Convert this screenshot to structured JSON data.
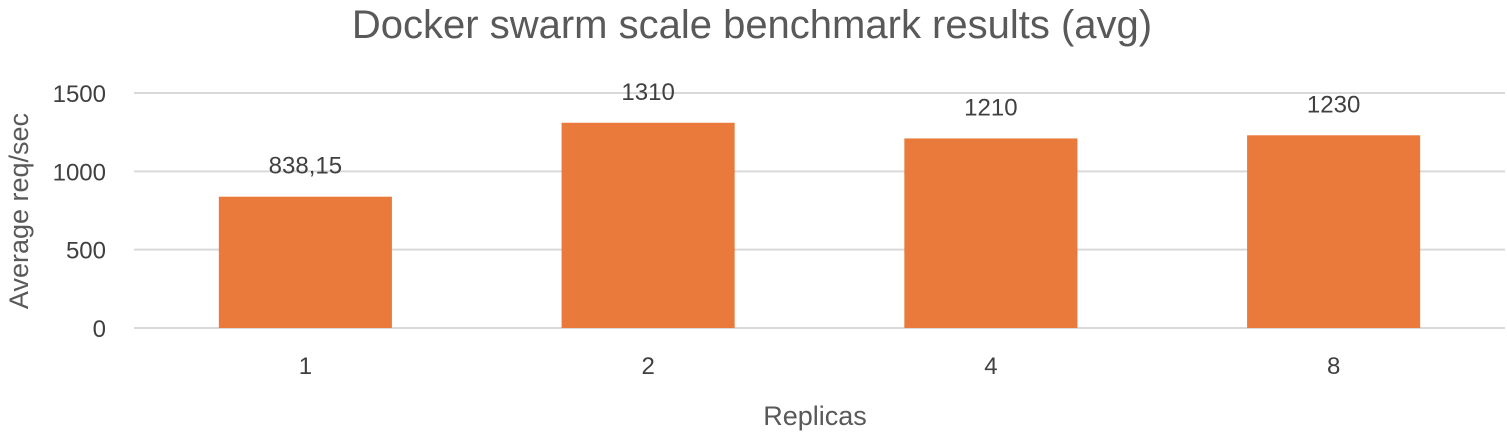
{
  "chart_data": {
    "type": "bar",
    "title": "Docker swarm scale benchmark results (avg)",
    "xlabel": "Replicas",
    "ylabel": "Average req/sec",
    "categories": [
      "1",
      "2",
      "4",
      "8"
    ],
    "values": [
      838.15,
      1310,
      1210,
      1230
    ],
    "data_labels": [
      "838,15",
      "1310",
      "1210",
      "1230"
    ],
    "ylim": [
      0,
      1500
    ],
    "y_ticks": [
      0,
      500,
      1000,
      1500
    ],
    "y_tick_labels": [
      "0",
      "500",
      "1000",
      "1500"
    ],
    "grid": true,
    "legend": "none",
    "bar_color": "#ea7a3c",
    "grid_color": "#d9d9d9",
    "text_color": "#595959"
  }
}
